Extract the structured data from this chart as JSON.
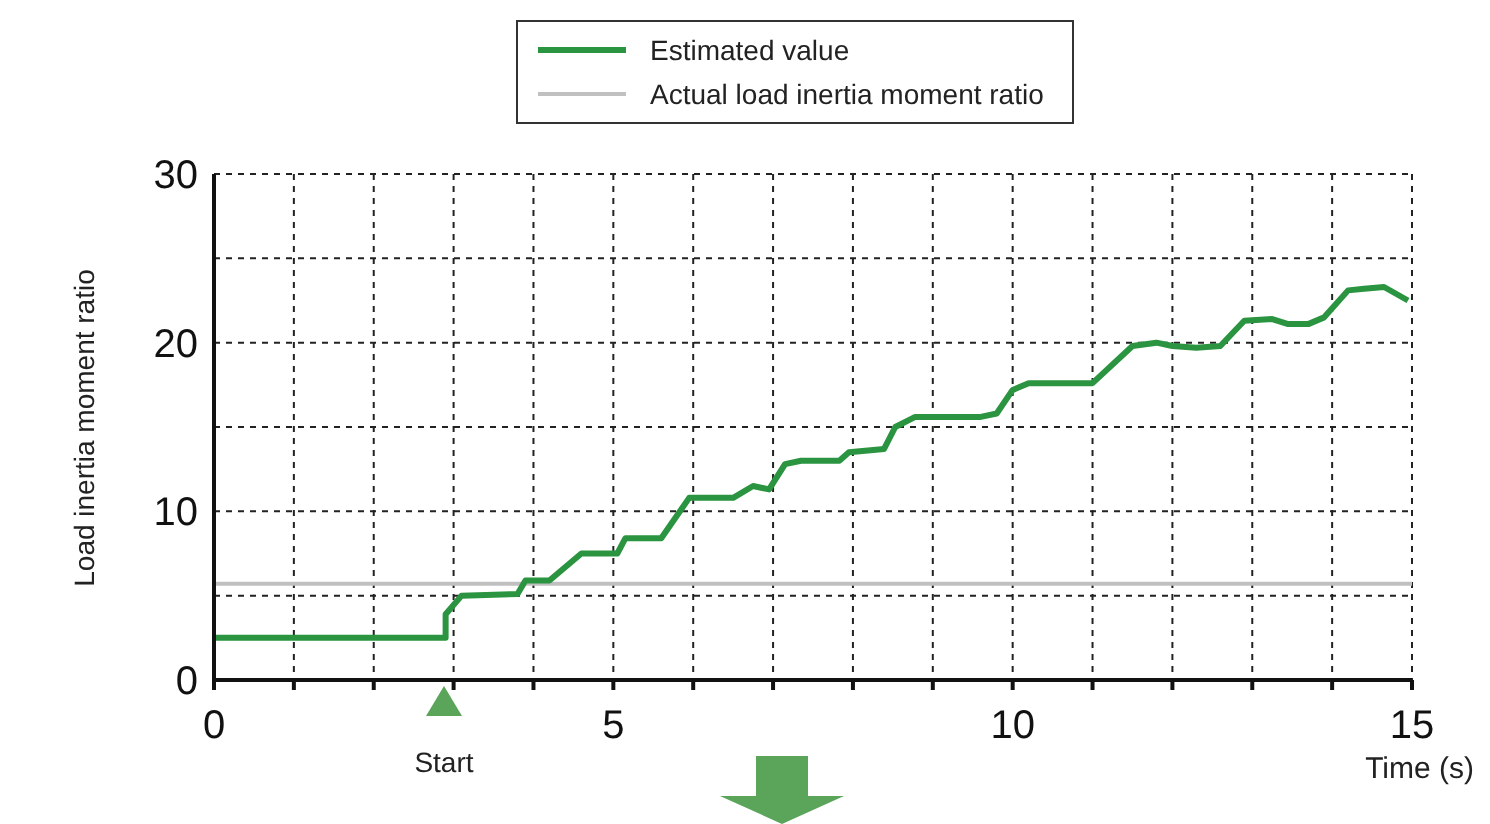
{
  "chart_data": {
    "type": "line",
    "xlabel": "Time (s)",
    "ylabel": "Load inertia moment ratio",
    "xlim": [
      0,
      15
    ],
    "ylim": [
      0,
      30
    ],
    "xticks": [
      0,
      {
        "value": 1,
        "label": null
      },
      {
        "value": 2,
        "label": null
      },
      {
        "value": 3,
        "label": null
      },
      {
        "value": 4,
        "label": null
      },
      5,
      {
        "value": 6,
        "label": null
      },
      {
        "value": 7,
        "label": null
      },
      {
        "value": 8,
        "label": null
      },
      {
        "value": 9,
        "label": null
      },
      10,
      {
        "value": 11,
        "label": null
      },
      {
        "value": 12,
        "label": null
      },
      {
        "value": 13,
        "label": null
      },
      {
        "value": 14,
        "label": null
      },
      15
    ],
    "yticks": [
      0,
      {
        "value": 5,
        "label": null
      },
      10,
      {
        "value": 15,
        "label": null
      },
      20,
      {
        "value": 25,
        "label": null
      },
      30
    ],
    "grid": true,
    "legend": "top",
    "marker": "none",
    "line_style": "solid",
    "series": [
      {
        "name": "Estimated value",
        "color": "#2a9440",
        "x": [
          0,
          2.9,
          2.9,
          3.1,
          3.8,
          3.9,
          4.2,
          4.6,
          5.05,
          5.15,
          5.6,
          5.95,
          6.5,
          6.75,
          6.95,
          7.15,
          7.35,
          7.83,
          7.95,
          8.39,
          8.53,
          8.78,
          9.6,
          9.8,
          10.0,
          10.2,
          11.0,
          11.5,
          11.8,
          12.0,
          12.3,
          12.6,
          12.9,
          13.25,
          13.45,
          13.7,
          13.9,
          14.2,
          14.4,
          14.65,
          14.95
        ],
        "values": [
          2.5,
          2.5,
          3.9,
          5.0,
          5.1,
          5.9,
          5.9,
          7.5,
          7.5,
          8.4,
          8.4,
          10.8,
          10.8,
          11.5,
          11.3,
          12.8,
          13.0,
          13.0,
          13.5,
          13.7,
          15.0,
          15.6,
          15.6,
          15.8,
          17.2,
          17.6,
          17.6,
          19.8,
          20.0,
          19.8,
          19.7,
          19.8,
          21.3,
          21.4,
          21.1,
          21.1,
          21.5,
          23.1,
          23.2,
          23.3,
          22.5
        ]
      },
      {
        "name": "Actual load inertia moment ratio",
        "color": "#c0c0c0",
        "x": [
          0,
          15
        ],
        "values": [
          5.7,
          5.7
        ]
      }
    ],
    "annotations": [
      "Start"
    ]
  }
}
